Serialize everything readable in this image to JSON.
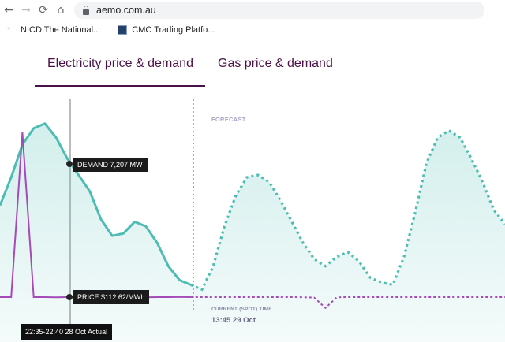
{
  "browser": {
    "url": "aemo.com.au",
    "back_glyph": "←",
    "forward_glyph": "→",
    "reload_glyph": "⟳",
    "home_glyph": "⌂",
    "bookmarks": [
      {
        "label": "NICD The National..."
      },
      {
        "label": "CMC Trading Platfo..."
      }
    ]
  },
  "tabs": [
    {
      "label": "Electricity price & demand",
      "active": true
    },
    {
      "label": "Gas price & demand",
      "active": false
    }
  ],
  "chart": {
    "forecast_label": "FORECAST",
    "current_label": "CURRENT (SPOT) TIME",
    "current_time": "13:45 29 Oct",
    "tooltip_demand": "DEMAND 7,207 MW",
    "tooltip_price": "PRICE $112.62/MWh",
    "tooltip_time": "22:35-22:40 28 Oct Actual"
  },
  "colors": {
    "accent_purple": "#4b1248",
    "demand_teal": "#4dbdb4",
    "price_purple": "#a54bb8"
  },
  "chart_data": {
    "type": "area",
    "series": [
      {
        "values": [
          6300,
          6900,
          7600,
          7950,
          8050,
          7750,
          7300,
          6950,
          6600,
          6000,
          5650,
          5700,
          5950,
          5850,
          5500,
          5000,
          4700,
          4600,
          4500,
          5000,
          5850,
          6500,
          6900,
          6950,
          6800,
          6400,
          5950,
          5500,
          5150,
          5000,
          5200,
          5300,
          5100,
          4750,
          4650,
          4600,
          5200,
          6150,
          7200,
          7750,
          7900,
          7750,
          7300,
          6800,
          6200,
          5900
        ]
      },
      {
        "values": [
          112,
          112,
          3000,
          112,
          112,
          110,
          112,
          112,
          112,
          112,
          105,
          100,
          100,
          108,
          112,
          112,
          115,
          112,
          112,
          112,
          112,
          112,
          112,
          112,
          112,
          112,
          112,
          110,
          105,
          -60,
          108,
          112,
          112,
          112,
          112,
          112,
          112,
          112,
          112,
          112,
          112,
          112,
          112,
          112,
          112,
          112
        ]
      }
    ]
  }
}
